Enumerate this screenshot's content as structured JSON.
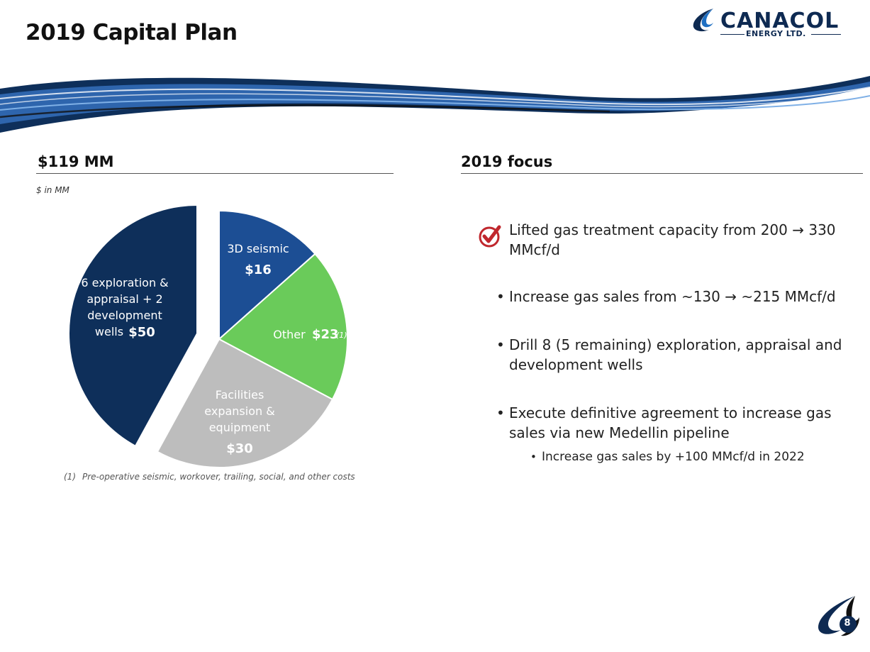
{
  "page": {
    "title": "2019 Capital Plan",
    "page_number": "8"
  },
  "logo": {
    "name": "CANACOL",
    "sub": "ENERGY LTD."
  },
  "left_section": {
    "heading": "$119 MM",
    "units": "$ in MM",
    "footnote_num": "(1)",
    "footnote": "Pre-operative seismic, workover, trailing, social, and other costs"
  },
  "right_section": {
    "heading": "2019 focus"
  },
  "chart_data": {
    "type": "pie",
    "total_label": "$119 MM",
    "slices": [
      {
        "label_lines": [
          "3D seismic"
        ],
        "value": 16,
        "value_label": "$16",
        "color": "#1c4e94"
      },
      {
        "label_lines": [
          "Other"
        ],
        "value": 23,
        "value_label": "$23",
        "footnote_mark": "(1)",
        "color": "#6acb5a"
      },
      {
        "label_lines": [
          "Facilities",
          "expansion &",
          "equipment"
        ],
        "value": 30,
        "value_label": "$30",
        "color": "#bdbdbd"
      },
      {
        "label_lines": [
          "6 exploration &",
          "appraisal + 2",
          "development",
          "wells"
        ],
        "value": 50,
        "value_label": "$50",
        "color": "#0e2f5a",
        "exploded": true
      }
    ]
  },
  "focus": {
    "items": [
      {
        "text": "Lifted gas treatment capacity from 200 → 330 MMcf/d",
        "checked": true
      },
      {
        "text": "Increase gas sales from ~130 → ~215 MMcf/d"
      },
      {
        "text": "Drill 8 (5 remaining) exploration, appraisal and development wells"
      },
      {
        "text": "Execute definitive agreement to increase gas sales via new Medellin pipeline"
      }
    ],
    "sub_item": "Increase gas sales by +100 MMcf/d in 2022",
    "bullet_char": "•"
  }
}
